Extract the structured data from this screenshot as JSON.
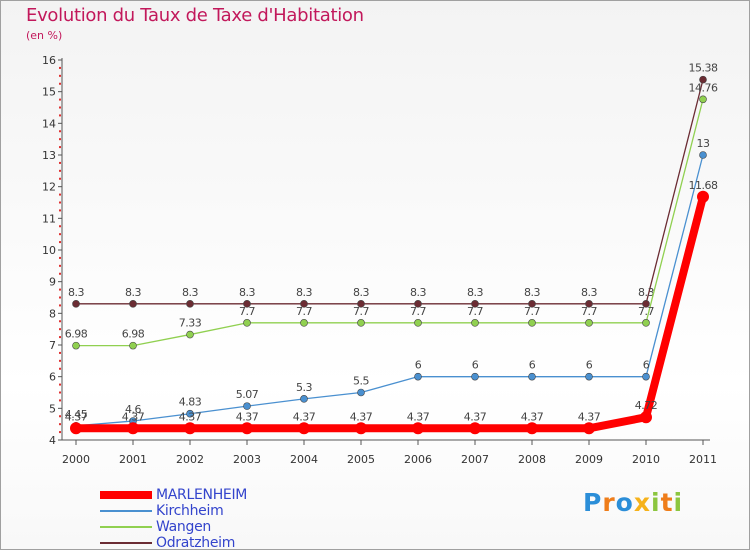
{
  "chart_data": {
    "type": "line",
    "title": "Evolution du Taux de Taxe d'Habitation",
    "subtitle": "(en %)",
    "xlabel": "",
    "ylabel": "",
    "ylim": [
      4,
      16
    ],
    "yticks": [
      4,
      5,
      6,
      7,
      8,
      9,
      10,
      11,
      12,
      13,
      14,
      15,
      16
    ],
    "categories": [
      "2000",
      "2001",
      "2002",
      "2003",
      "2004",
      "2005",
      "2006",
      "2007",
      "2008",
      "2009",
      "2010",
      "2011"
    ],
    "series": [
      {
        "name": "Odratzheim",
        "color": "#6b2c33",
        "values": [
          8.3,
          8.3,
          8.3,
          8.3,
          8.3,
          8.3,
          8.3,
          8.3,
          8.3,
          8.3,
          8.3,
          15.38
        ],
        "labels": [
          "8.3",
          "8.3",
          "8.3",
          "8.3",
          "8.3",
          "8.3",
          "8.3",
          "8.3",
          "8.3",
          "8.3",
          "8.3",
          "15.38"
        ]
      },
      {
        "name": "Wangen",
        "color": "#90d050",
        "values": [
          6.98,
          6.98,
          7.33,
          7.7,
          7.7,
          7.7,
          7.7,
          7.7,
          7.7,
          7.7,
          7.7,
          14.76
        ],
        "labels": [
          "6.98",
          "6.98",
          "7.33",
          "7.7",
          "7.7",
          "7.7",
          "7.7",
          "7.7",
          "7.7",
          "7.7",
          "7.7",
          "14.76"
        ]
      },
      {
        "name": "Kirchheim",
        "color": "#4a90d0",
        "values": [
          4.45,
          4.6,
          4.83,
          5.07,
          5.3,
          5.5,
          6,
          6,
          6,
          6,
          6,
          13
        ],
        "labels": [
          "4.45",
          "4.6",
          "4.83",
          "5.07",
          "5.3",
          "5.5",
          "6",
          "6",
          "6",
          "6",
          "6",
          "13"
        ]
      },
      {
        "name": "MARLENHEIM",
        "color": "#ff0000",
        "values": [
          4.37,
          4.37,
          4.37,
          4.37,
          4.37,
          4.37,
          4.37,
          4.37,
          4.37,
          4.37,
          4.72,
          11.68
        ],
        "labels": [
          "4.37",
          "4.37",
          "4.37",
          "4.37",
          "4.37",
          "4.37",
          "4.37",
          "4.37",
          "4.37",
          "4.37",
          "4.72",
          "11.68"
        ]
      }
    ],
    "legend": [
      "MARLENHEIM",
      "Kirchheim",
      "Wangen",
      "Odratzheim"
    ],
    "legend_position": "bottom-left",
    "grid": false
  },
  "logo": {
    "letters": [
      "P",
      "r",
      "o",
      "x",
      "i",
      "t",
      "i"
    ],
    "colors": [
      "#2b8ed8",
      "#ef7d1a",
      "#2b8ed8",
      "#f6b21a",
      "#8cc63f",
      "#ef7d1a",
      "#8cc63f"
    ]
  },
  "colors": {
    "title": "#c2185b",
    "legend_text": "#3344cc",
    "axis": "#555555"
  }
}
